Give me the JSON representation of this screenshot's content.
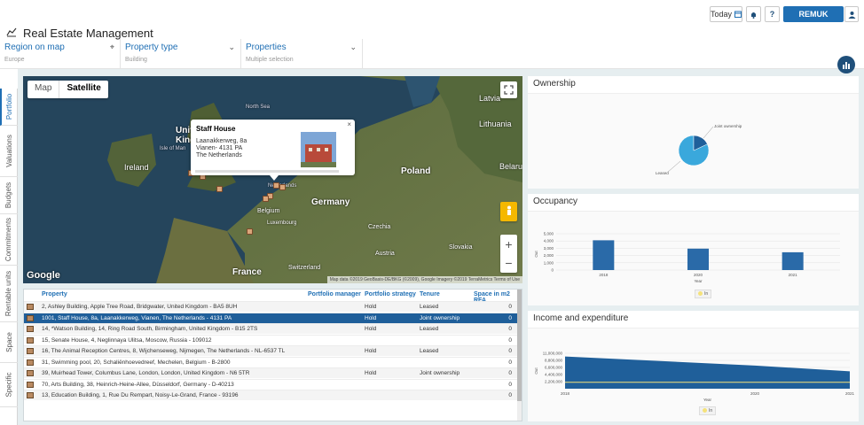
{
  "header": {
    "title": "Real Estate Management",
    "today_label": "Today",
    "help_label": "?",
    "user_label": "REMUK"
  },
  "filters": [
    {
      "label": "Region on map",
      "value": "Europe"
    },
    {
      "label": "Property type",
      "value": "Building"
    },
    {
      "label": "Properties",
      "value": "Multiple selection"
    }
  ],
  "side_tabs": [
    "Portfolio",
    "Valuations",
    "Budgets",
    "Commitments",
    "Rentable units",
    "Space",
    "Specific"
  ],
  "map": {
    "toggle": {
      "map": "Map",
      "satellite": "Satellite"
    },
    "labels": {
      "latvia": "Latvia",
      "lithuania": "Lithuania",
      "north_sea": "North Sea",
      "united_kingdom": "United\nKingdom",
      "isle_of_man": "Isle of Man",
      "ireland": "Ireland",
      "belarus": "Belarus",
      "poland": "Poland",
      "germany": "Germany",
      "belgium": "Belgium",
      "luxembourg": "Luxembourg",
      "czechia": "Czechia",
      "slovakia": "Slovakia",
      "austria": "Austria",
      "france": "France",
      "switzerland": "Switzerland",
      "netherlands": "Netherlands"
    },
    "google": "Google",
    "attribution": "Map data ©2019 GeoBasis-DE/BKG (©2009), Google Imagery ©2019 TerraMetrics   Terms of Use",
    "zoom_in": "+",
    "zoom_out": "−",
    "popup": {
      "title": "Staff House",
      "street": "Laanakkerweg, 8a",
      "city": "Vianen- 4131 PA",
      "country": "The Netherlands",
      "close": "×"
    }
  },
  "table": {
    "columns": [
      "Property",
      "Portfolio manager",
      "Portfolio strategy",
      "Tenure",
      "Space in m2 RFA"
    ],
    "rows": [
      {
        "property": "2, Ashley Building, Apple Tree Road, Bridgwater, United Kingdom - BA5 8UH",
        "manager": "",
        "strategy": "Hold",
        "tenure": "Leased",
        "space": "0"
      },
      {
        "property": "1001, Staff House, 8a, Laanakkerweg, Vianen, The Netherlands - 4131 PA",
        "manager": "",
        "strategy": "Hold",
        "tenure": "Joint ownership",
        "space": "0"
      },
      {
        "property": "14, *Watson Building, 14, Ring Road South, Birmingham, United Kingdom - B15 2TS",
        "manager": "",
        "strategy": "Hold",
        "tenure": "Leased",
        "space": "0"
      },
      {
        "property": "15, Senate House, 4, Neglinnaya Ulitsa, Moscow, Russia - 109012",
        "manager": "",
        "strategy": "",
        "tenure": "",
        "space": "0"
      },
      {
        "property": "16, The Animal Reception Centres, 8, Wijchenseweg, Nijmegen, The Netherlands - NL-6537 TL",
        "manager": "",
        "strategy": "Hold",
        "tenure": "Leased",
        "space": "0"
      },
      {
        "property": "31, Swimming pool, 20, Schaliënhoevedreef, Mechelen, Belgium - B-2800",
        "manager": "",
        "strategy": "",
        "tenure": "",
        "space": "0"
      },
      {
        "property": "39, Muirhead Tower, Columbus Lane, London, London, United Kingdom - N6 5TR",
        "manager": "",
        "strategy": "Hold",
        "tenure": "Joint ownership",
        "space": "0"
      },
      {
        "property": "70, Arts Building, 38, Heinrich-Heine-Allee, Düsseldorf, Germany - D-40213",
        "manager": "",
        "strategy": "",
        "tenure": "",
        "space": "0"
      },
      {
        "property": "13, Education Building, 1, Rue Du Rempart, Noisy-Le-Grand, France - 93196",
        "manager": "",
        "strategy": "",
        "tenure": "",
        "space": "0"
      }
    ]
  },
  "panels": {
    "ownership": {
      "title": "Ownership"
    },
    "occupancy": {
      "title": "Occupancy"
    },
    "income": {
      "title": "Income and expenditure"
    }
  },
  "colors": {
    "accent": "#1f6fb4",
    "bar": "#2a6aa8",
    "pie_main": "#3aa8dc",
    "pie_minor": "#1f5f9a"
  },
  "chart_data": [
    {
      "type": "pie",
      "title": "Ownership",
      "slices": [
        {
          "label": "Leased",
          "value": 82
        },
        {
          "label": "Joint ownership",
          "value": 18
        }
      ]
    },
    {
      "type": "bar",
      "title": "Occupancy",
      "categories": [
        "2018",
        "2020",
        "2021"
      ],
      "values": [
        4100,
        2950,
        2450
      ],
      "xlabel": "Year",
      "ylabel": "Out",
      "yticks": [
        "0",
        "1,000",
        "2,000",
        "3,000",
        "4,000",
        "5,000"
      ],
      "ylim": [
        0,
        5000
      ],
      "legend": [
        "In"
      ]
    },
    {
      "type": "area",
      "title": "Income and expenditure",
      "x": [
        "2018",
        "2020",
        "2021"
      ],
      "series": [
        {
          "name": "Out",
          "values": [
            10000000,
            7200000,
            5400000
          ]
        },
        {
          "name": "In",
          "values": [
            2000000,
            2000000,
            2000000
          ]
        }
      ],
      "xlabel": "Year",
      "ylabel": "Out",
      "yticks": [
        "2,200,000",
        "4,400,000",
        "6,600,000",
        "8,800,000",
        "11,000,000"
      ],
      "ylim": [
        0,
        11000000
      ],
      "legend": [
        "In"
      ]
    }
  ]
}
